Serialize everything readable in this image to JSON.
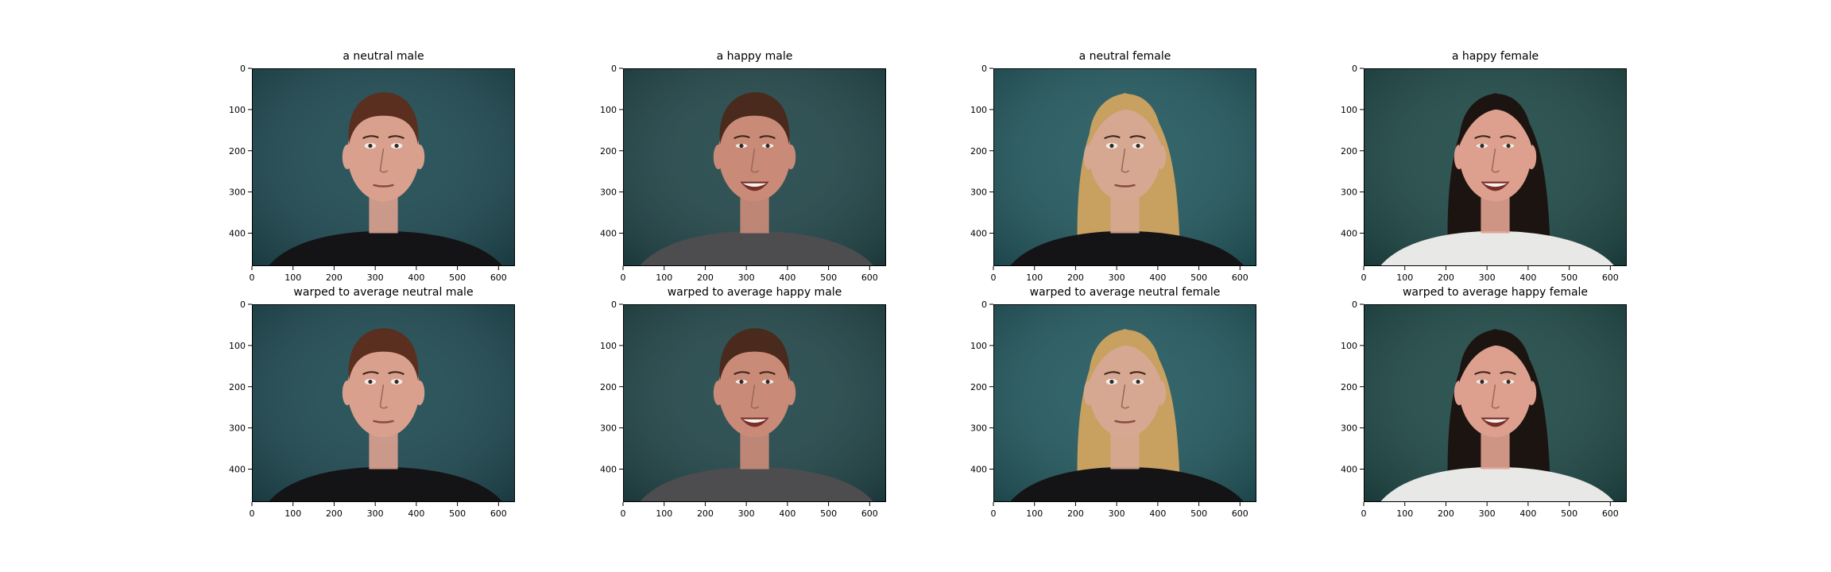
{
  "figure": {
    "background": "#ffffff",
    "axis_color": "#000000"
  },
  "chart_data": [
    {
      "type": "image",
      "title": "a neutral male",
      "xlim": [
        0,
        640
      ],
      "ylim": [
        480,
        0
      ],
      "xticks": [
        0,
        100,
        200,
        300,
        400,
        500,
        600
      ],
      "yticks": [
        0,
        100,
        200,
        300,
        400
      ],
      "subject": "male",
      "expression": "neutral",
      "colors": {
        "background": "#1e4a52",
        "skin": "#d9a08e",
        "hair": "#5a2f1f",
        "clothing": "#141416"
      }
    },
    {
      "type": "image",
      "title": "a happy male",
      "xlim": [
        0,
        640
      ],
      "ylim": [
        480,
        0
      ],
      "xticks": [
        0,
        100,
        200,
        300,
        400,
        500,
        600
      ],
      "yticks": [
        0,
        100,
        200,
        300,
        400
      ],
      "subject": "male",
      "expression": "happy",
      "colors": {
        "background": "#22474a",
        "skin": "#c98b78",
        "hair": "#4a2a1c",
        "clothing": "#4d4d4f"
      }
    },
    {
      "type": "image",
      "title": "a neutral female",
      "xlim": [
        0,
        640
      ],
      "ylim": [
        480,
        0
      ],
      "xticks": [
        0,
        100,
        200,
        300,
        400,
        500,
        600
      ],
      "yticks": [
        0,
        100,
        200,
        300,
        400
      ],
      "subject": "female",
      "expression": "neutral",
      "colors": {
        "background": "#235a60",
        "skin": "#d6a892",
        "hair": "#c8a060",
        "clothing": "#141416"
      }
    },
    {
      "type": "image",
      "title": "a happy female",
      "xlim": [
        0,
        640
      ],
      "ylim": [
        480,
        0
      ],
      "xticks": [
        0,
        100,
        200,
        300,
        400,
        500,
        600
      ],
      "yticks": [
        0,
        100,
        200,
        300,
        400
      ],
      "subject": "female",
      "expression": "happy",
      "colors": {
        "background": "#1f4a48",
        "skin": "#dda08e",
        "hair": "#1c1410",
        "clothing": "#e8e8e6"
      }
    },
    {
      "type": "image",
      "title": "warped to average neutral male",
      "xlim": [
        0,
        640
      ],
      "ylim": [
        480,
        0
      ],
      "xticks": [
        0,
        100,
        200,
        300,
        400,
        500,
        600
      ],
      "yticks": [
        0,
        100,
        200,
        300,
        400
      ],
      "subject": "male",
      "expression": "neutral",
      "colors": {
        "background": "#1e4a52",
        "skin": "#d9a08e",
        "hair": "#5a2f1f",
        "clothing": "#141416"
      }
    },
    {
      "type": "image",
      "title": "warped to average happy male",
      "xlim": [
        0,
        640
      ],
      "ylim": [
        480,
        0
      ],
      "xticks": [
        0,
        100,
        200,
        300,
        400,
        500,
        600
      ],
      "yticks": [
        0,
        100,
        200,
        300,
        400
      ],
      "subject": "male",
      "expression": "happy",
      "colors": {
        "background": "#22474a",
        "skin": "#c98b78",
        "hair": "#4a2a1c",
        "clothing": "#4d4d4f"
      }
    },
    {
      "type": "image",
      "title": "warped to average neutral female",
      "xlim": [
        0,
        640
      ],
      "ylim": [
        480,
        0
      ],
      "xticks": [
        0,
        100,
        200,
        300,
        400,
        500,
        600
      ],
      "yticks": [
        0,
        100,
        200,
        300,
        400
      ],
      "subject": "female",
      "expression": "neutral",
      "colors": {
        "background": "#235a60",
        "skin": "#d6a892",
        "hair": "#c8a060",
        "clothing": "#141416"
      }
    },
    {
      "type": "image",
      "title": "warped to average happy female",
      "xlim": [
        0,
        640
      ],
      "ylim": [
        480,
        0
      ],
      "xticks": [
        0,
        100,
        200,
        300,
        400,
        500,
        600
      ],
      "yticks": [
        0,
        100,
        200,
        300,
        400
      ],
      "subject": "female",
      "expression": "happy",
      "colors": {
        "background": "#1f4a48",
        "skin": "#dda08e",
        "hair": "#1c1410",
        "clothing": "#e8e8e6"
      }
    }
  ]
}
